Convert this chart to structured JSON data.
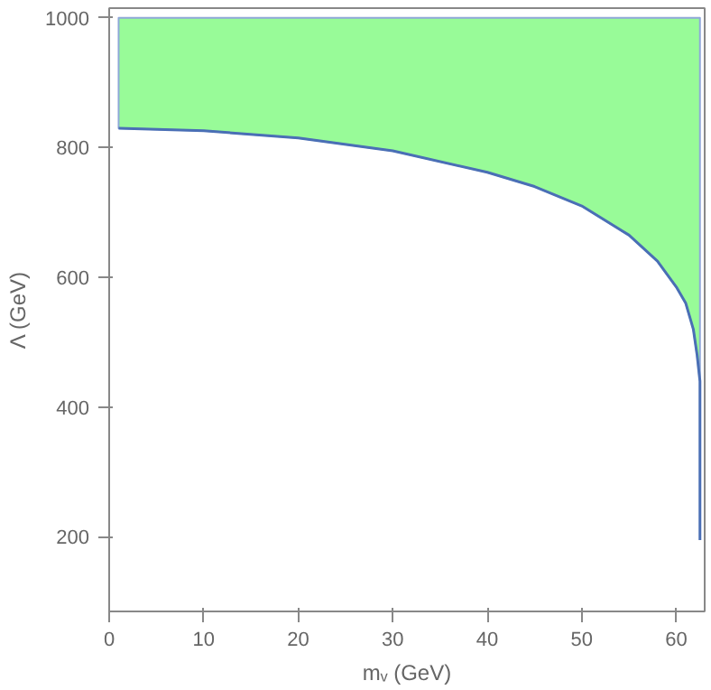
{
  "chart_data": {
    "type": "line",
    "color": "#98fb98",
    "xlabel": "mᵥ (GeV)",
    "ylabel": "Λ (GeV)",
    "xlim": [
      0,
      63
    ],
    "ylim": [
      85,
      1015
    ],
    "xticks": [
      0,
      10,
      20,
      30,
      40,
      50,
      60
    ],
    "yticks": [
      200,
      400,
      600,
      800,
      1000
    ],
    "grid": false,
    "series": [
      {
        "type": "line",
        "color": "#4a6fb5",
        "x": [
          1,
          10,
          20,
          30,
          40,
          45,
          50,
          55,
          58,
          60,
          61,
          61.8,
          62.2,
          62.5,
          62.5,
          62.5
        ],
        "values": [
          830,
          826,
          815,
          795,
          762,
          740,
          710,
          665,
          625,
          585,
          560,
          520,
          480,
          440,
          300,
          195
        ],
        "lower": [
          830,
          826,
          815,
          795,
          762,
          740,
          710,
          665,
          625,
          585,
          560,
          520,
          480,
          440,
          null,
          null
        ],
        "upper": [
          1000,
          1000,
          1000,
          1000,
          1000,
          1000,
          1000,
          1000,
          1000,
          1000,
          1000,
          1000,
          1000,
          1000,
          null,
          null
        ]
      }
    ]
  }
}
